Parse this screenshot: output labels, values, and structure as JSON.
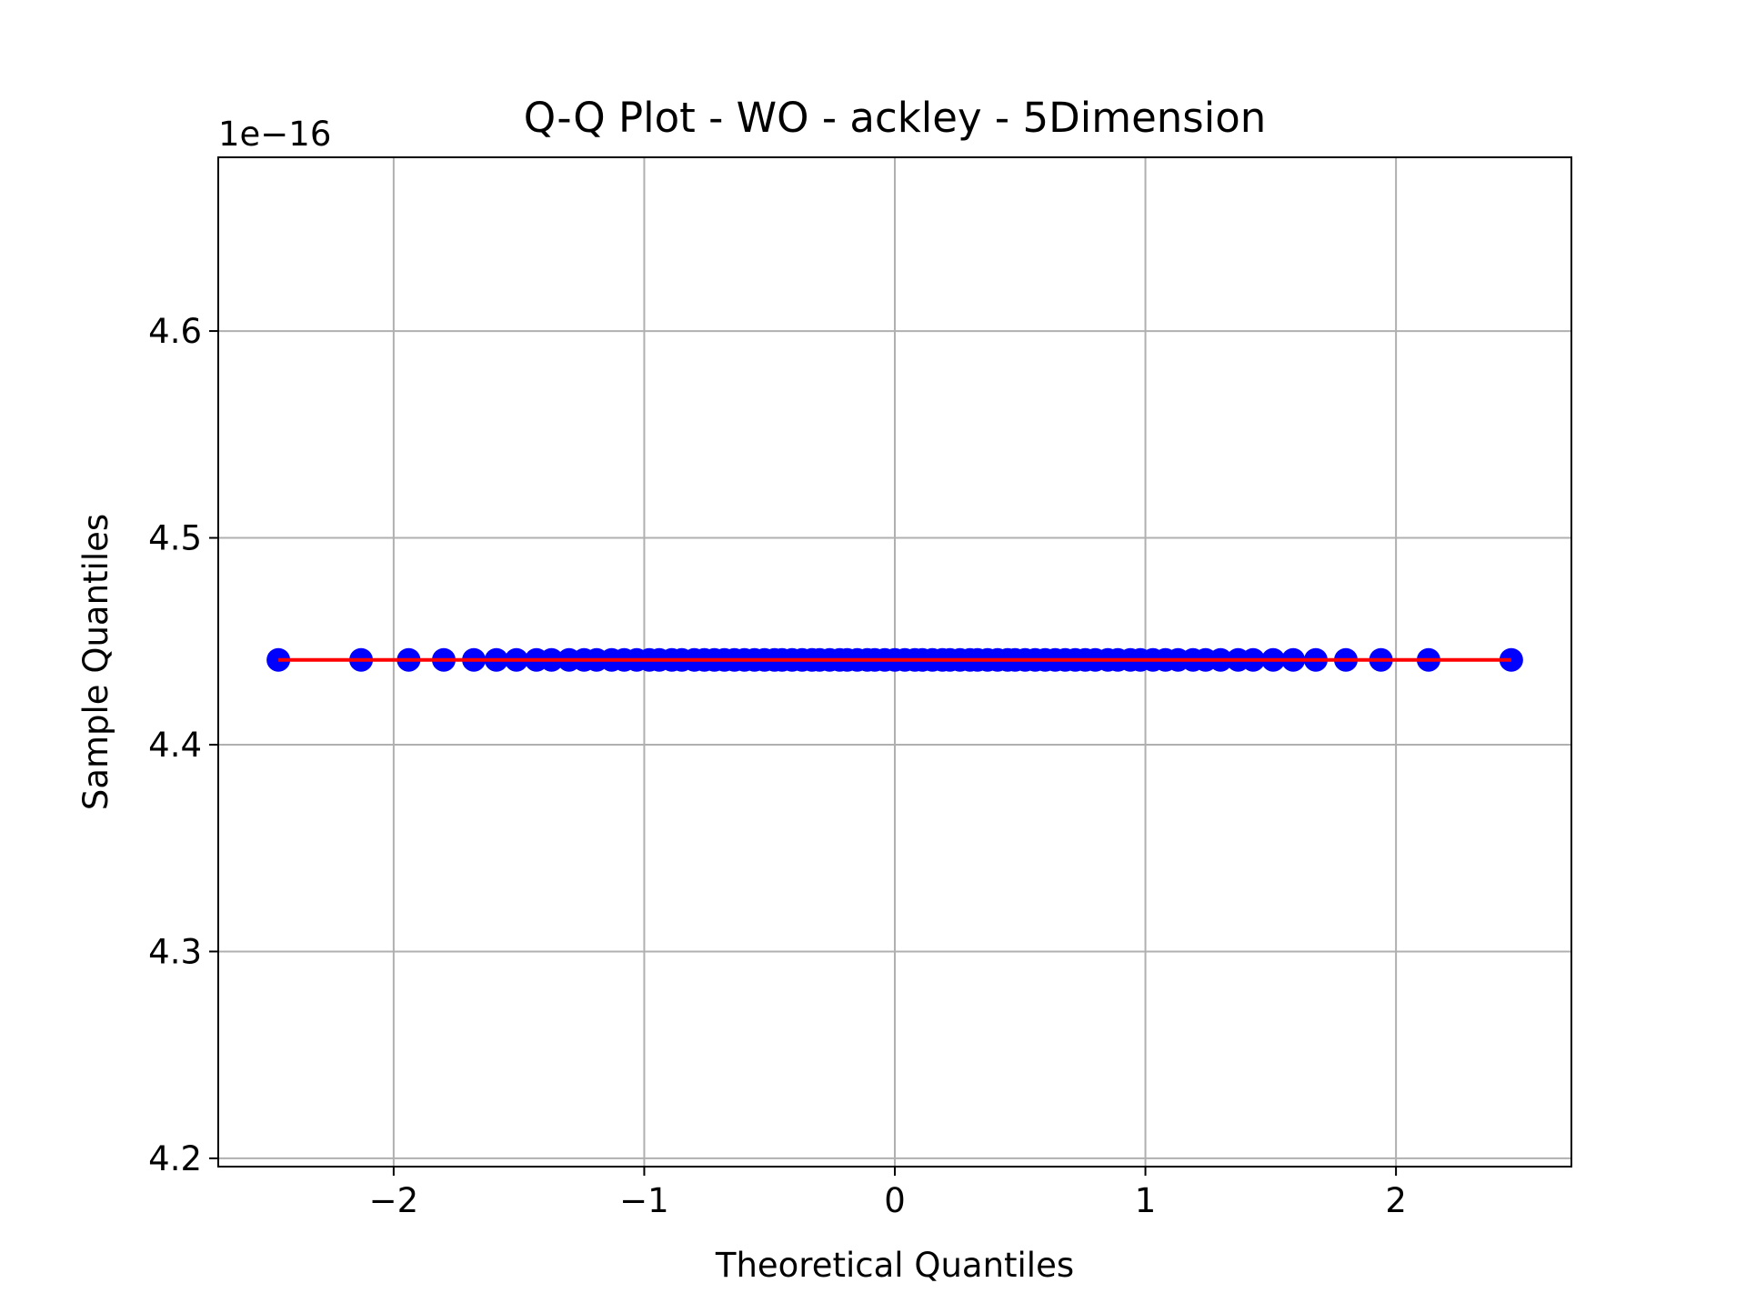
{
  "chart_data": {
    "type": "scatter",
    "title": "Q-Q Plot - WO - ackley - 5Dimension",
    "xlabel": "Theoretical Quantiles",
    "ylabel": "Sample Quantiles",
    "y_offset_label": "1e−16",
    "y_scale_exponent": -16,
    "xlim": [
      -2.7,
      2.7
    ],
    "ylim": [
      4.196,
      4.684
    ],
    "grid": true,
    "x_ticks": [
      {
        "value": -2,
        "label": "−2"
      },
      {
        "value": -1,
        "label": "−1"
      },
      {
        "value": 0,
        "label": "0"
      },
      {
        "value": 1,
        "label": "1"
      },
      {
        "value": 2,
        "label": "2"
      }
    ],
    "y_ticks": [
      {
        "value": 4.2,
        "label": "4.2"
      },
      {
        "value": 4.3,
        "label": "4.3"
      },
      {
        "value": 4.4,
        "label": "4.4"
      },
      {
        "value": 4.5,
        "label": "4.5"
      },
      {
        "value": 4.6,
        "label": "4.6"
      }
    ],
    "series": [
      {
        "kind": "points",
        "color": "#0000ff",
        "x": [
          -2.46,
          -2.13,
          -1.94,
          -1.8,
          -1.68,
          -1.59,
          -1.51,
          -1.43,
          -1.37,
          -1.3,
          -1.24,
          -1.19,
          -1.13,
          -1.08,
          -1.03,
          -0.98,
          -0.94,
          -0.89,
          -0.85,
          -0.8,
          -0.76,
          -0.72,
          -0.68,
          -0.64,
          -0.6,
          -0.56,
          -0.52,
          -0.48,
          -0.45,
          -0.41,
          -0.37,
          -0.33,
          -0.3,
          -0.26,
          -0.22,
          -0.19,
          -0.15,
          -0.11,
          -0.08,
          -0.04,
          0.0,
          0.04,
          0.08,
          0.11,
          0.15,
          0.19,
          0.22,
          0.26,
          0.3,
          0.33,
          0.37,
          0.41,
          0.45,
          0.48,
          0.52,
          0.56,
          0.6,
          0.64,
          0.68,
          0.72,
          0.76,
          0.8,
          0.85,
          0.89,
          0.94,
          0.98,
          1.03,
          1.08,
          1.13,
          1.19,
          1.24,
          1.3,
          1.37,
          1.43,
          1.51,
          1.59,
          1.68,
          1.8,
          1.94,
          2.13,
          2.46
        ],
        "y_constant": 4.441
      },
      {
        "kind": "line",
        "color": "#ff0000",
        "x": [
          -2.46,
          2.46
        ],
        "y": [
          4.441,
          4.441
        ]
      }
    ]
  }
}
